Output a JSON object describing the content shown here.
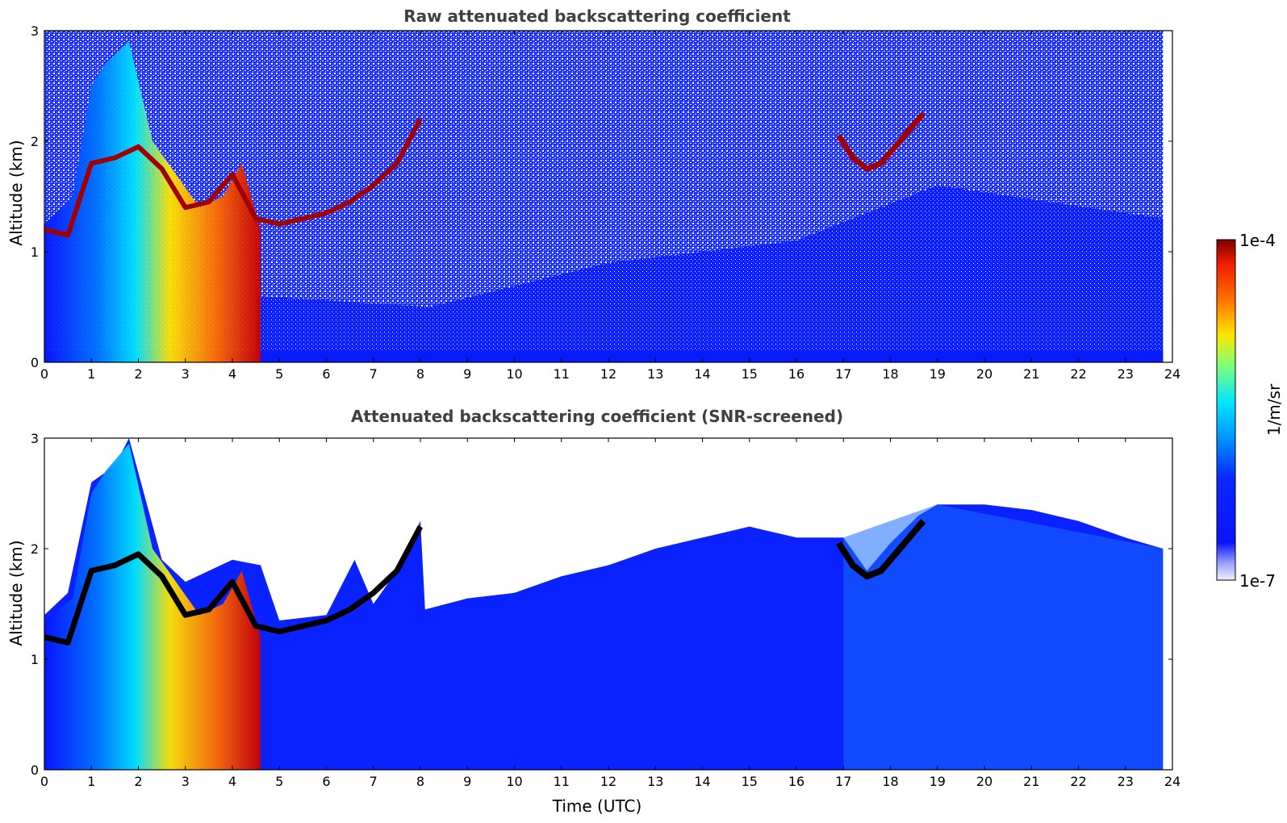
{
  "chart_data": [
    {
      "type": "heatmap",
      "title": "Raw attenuated backscattering coefficient",
      "xlabel": "",
      "ylabel": "Altitude (km)",
      "xlim": [
        0,
        24
      ],
      "ylim": [
        0,
        3
      ],
      "xticks": [
        "0",
        "1",
        "2",
        "3",
        "4",
        "5",
        "6",
        "7",
        "8",
        "9",
        "10",
        "11",
        "12",
        "13",
        "14",
        "15",
        "16",
        "17",
        "18",
        "19",
        "20",
        "21",
        "22",
        "23",
        "24"
      ],
      "yticks": [
        "0",
        "1",
        "2",
        "3"
      ],
      "data_end_time": 23.8,
      "cloud_base_layer": {
        "time": [
          0.0,
          0.5,
          1.0,
          1.5,
          2.0,
          2.5,
          3.0,
          3.5,
          4.0,
          4.5,
          5.0,
          5.5,
          6.0,
          6.5,
          7.0,
          7.5,
          8.0
        ],
        "altitude_km": [
          1.2,
          1.15,
          1.8,
          1.85,
          1.95,
          1.75,
          1.4,
          1.45,
          1.7,
          1.3,
          1.25,
          1.3,
          1.35,
          1.45,
          1.6,
          1.8,
          2.2
        ]
      },
      "afternoon_layer": {
        "time": [
          16.9,
          17.2,
          17.5,
          17.8,
          18.1,
          18.4,
          18.7
        ],
        "altitude_km": [
          2.05,
          1.85,
          1.75,
          1.8,
          1.95,
          2.1,
          2.25
        ]
      }
    },
    {
      "type": "heatmap",
      "title": "Attenuated backscattering coefficient (SNR-screened)",
      "xlabel": "Time (UTC)",
      "ylabel": "Altitude (km)",
      "xlim": [
        0,
        24
      ],
      "ylim": [
        0,
        3
      ],
      "xticks": [
        "0",
        "1",
        "2",
        "3",
        "4",
        "5",
        "6",
        "7",
        "8",
        "9",
        "10",
        "11",
        "12",
        "13",
        "14",
        "15",
        "16",
        "17",
        "18",
        "19",
        "20",
        "21",
        "22",
        "23",
        "24"
      ],
      "yticks": [
        "0",
        "1",
        "2",
        "3"
      ],
      "data_end_time": 23.8,
      "signal_top_km": {
        "time": [
          0,
          0.5,
          1,
          1.5,
          1.8,
          2.5,
          3,
          3.5,
          4,
          4.6,
          5,
          6,
          6.6,
          7,
          7.5,
          8,
          8.1,
          9,
          10,
          11,
          12,
          13,
          14,
          15,
          16,
          17,
          17.5,
          18,
          18.6,
          19,
          20,
          21,
          22,
          23,
          23.8
        ],
        "altitude_km": [
          1.4,
          1.6,
          2.6,
          2.75,
          3.0,
          1.9,
          1.7,
          1.8,
          1.9,
          1.85,
          1.35,
          1.4,
          1.9,
          1.5,
          1.8,
          2.25,
          1.45,
          1.55,
          1.6,
          1.75,
          1.85,
          2.0,
          2.1,
          2.2,
          2.1,
          2.1,
          1.8,
          2.05,
          2.3,
          2.4,
          2.4,
          2.35,
          2.25,
          2.1,
          2.0
        ]
      }
    }
  ],
  "colorbar": {
    "label": "1/m/sr",
    "max_label": "1e-4",
    "min_label": "1e-7",
    "scale": "log",
    "colormap": "jet"
  }
}
